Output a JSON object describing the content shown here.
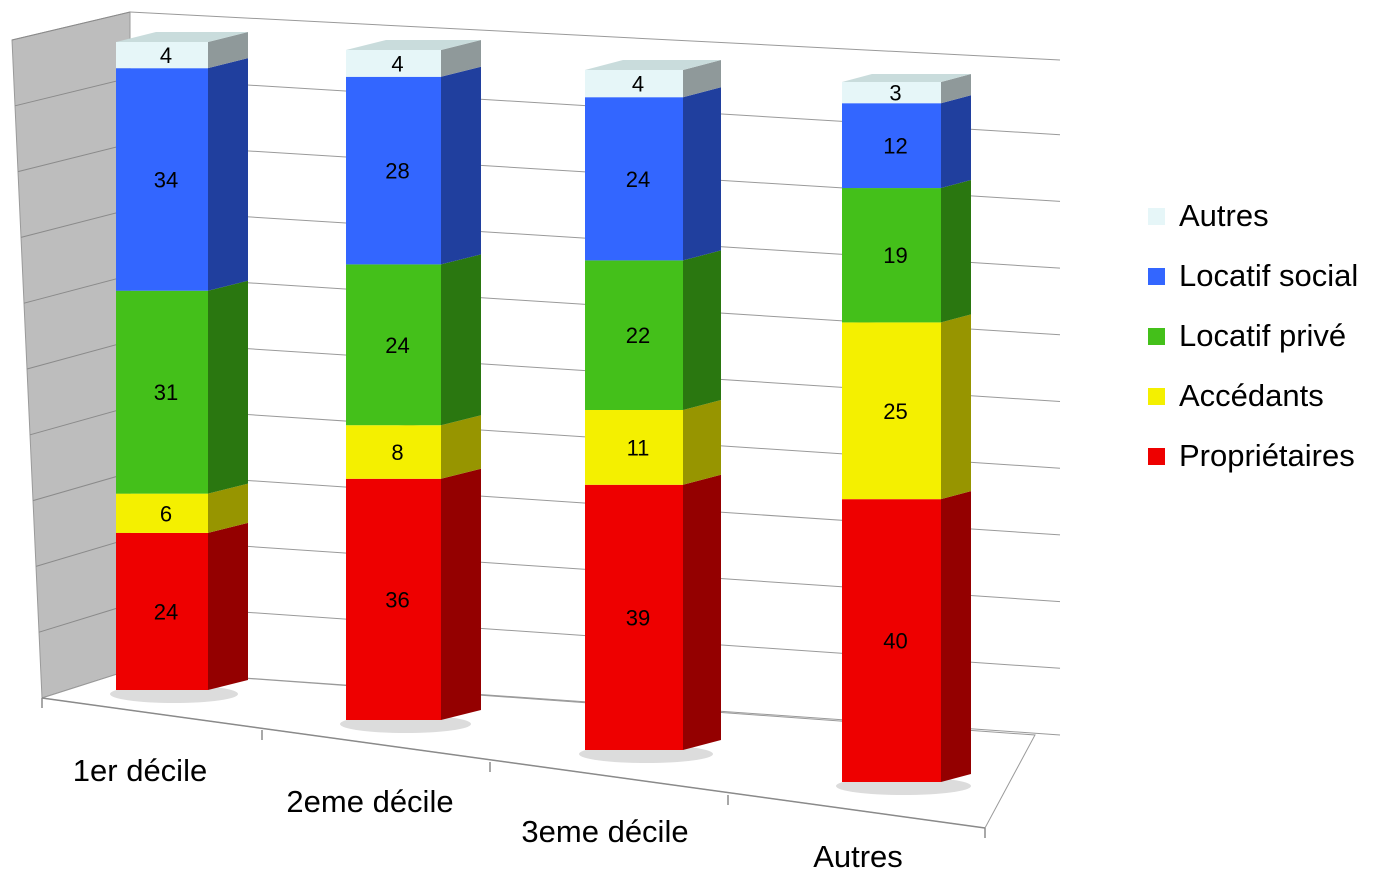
{
  "chart_data": {
    "type": "bar",
    "stacked": true,
    "three_d": true,
    "categories": [
      "1er décile",
      "2eme décile",
      "3eme décile",
      "Autres"
    ],
    "series": [
      {
        "name": "Propriétaires",
        "color": "#ee0000",
        "values": [
          24,
          36,
          39,
          40
        ]
      },
      {
        "name": "Accédants",
        "color": "#f4f000",
        "values": [
          6,
          8,
          11,
          25
        ]
      },
      {
        "name": "Locatif privé",
        "color": "#44c01a",
        "values": [
          31,
          24,
          22,
          19
        ]
      },
      {
        "name": "Locatif social",
        "color": "#3366ff",
        "values": [
          34,
          28,
          24,
          12
        ]
      },
      {
        "name": "Autres",
        "color": "#e6f6f8",
        "values": [
          4,
          4,
          4,
          3
        ]
      }
    ],
    "legend_order": [
      "Autres",
      "Locatif social",
      "Locatif privé",
      "Accédants",
      "Propriétaires"
    ],
    "ylim": [
      0,
      100
    ],
    "grid": true,
    "legend_position": "right",
    "data_labels": true
  }
}
